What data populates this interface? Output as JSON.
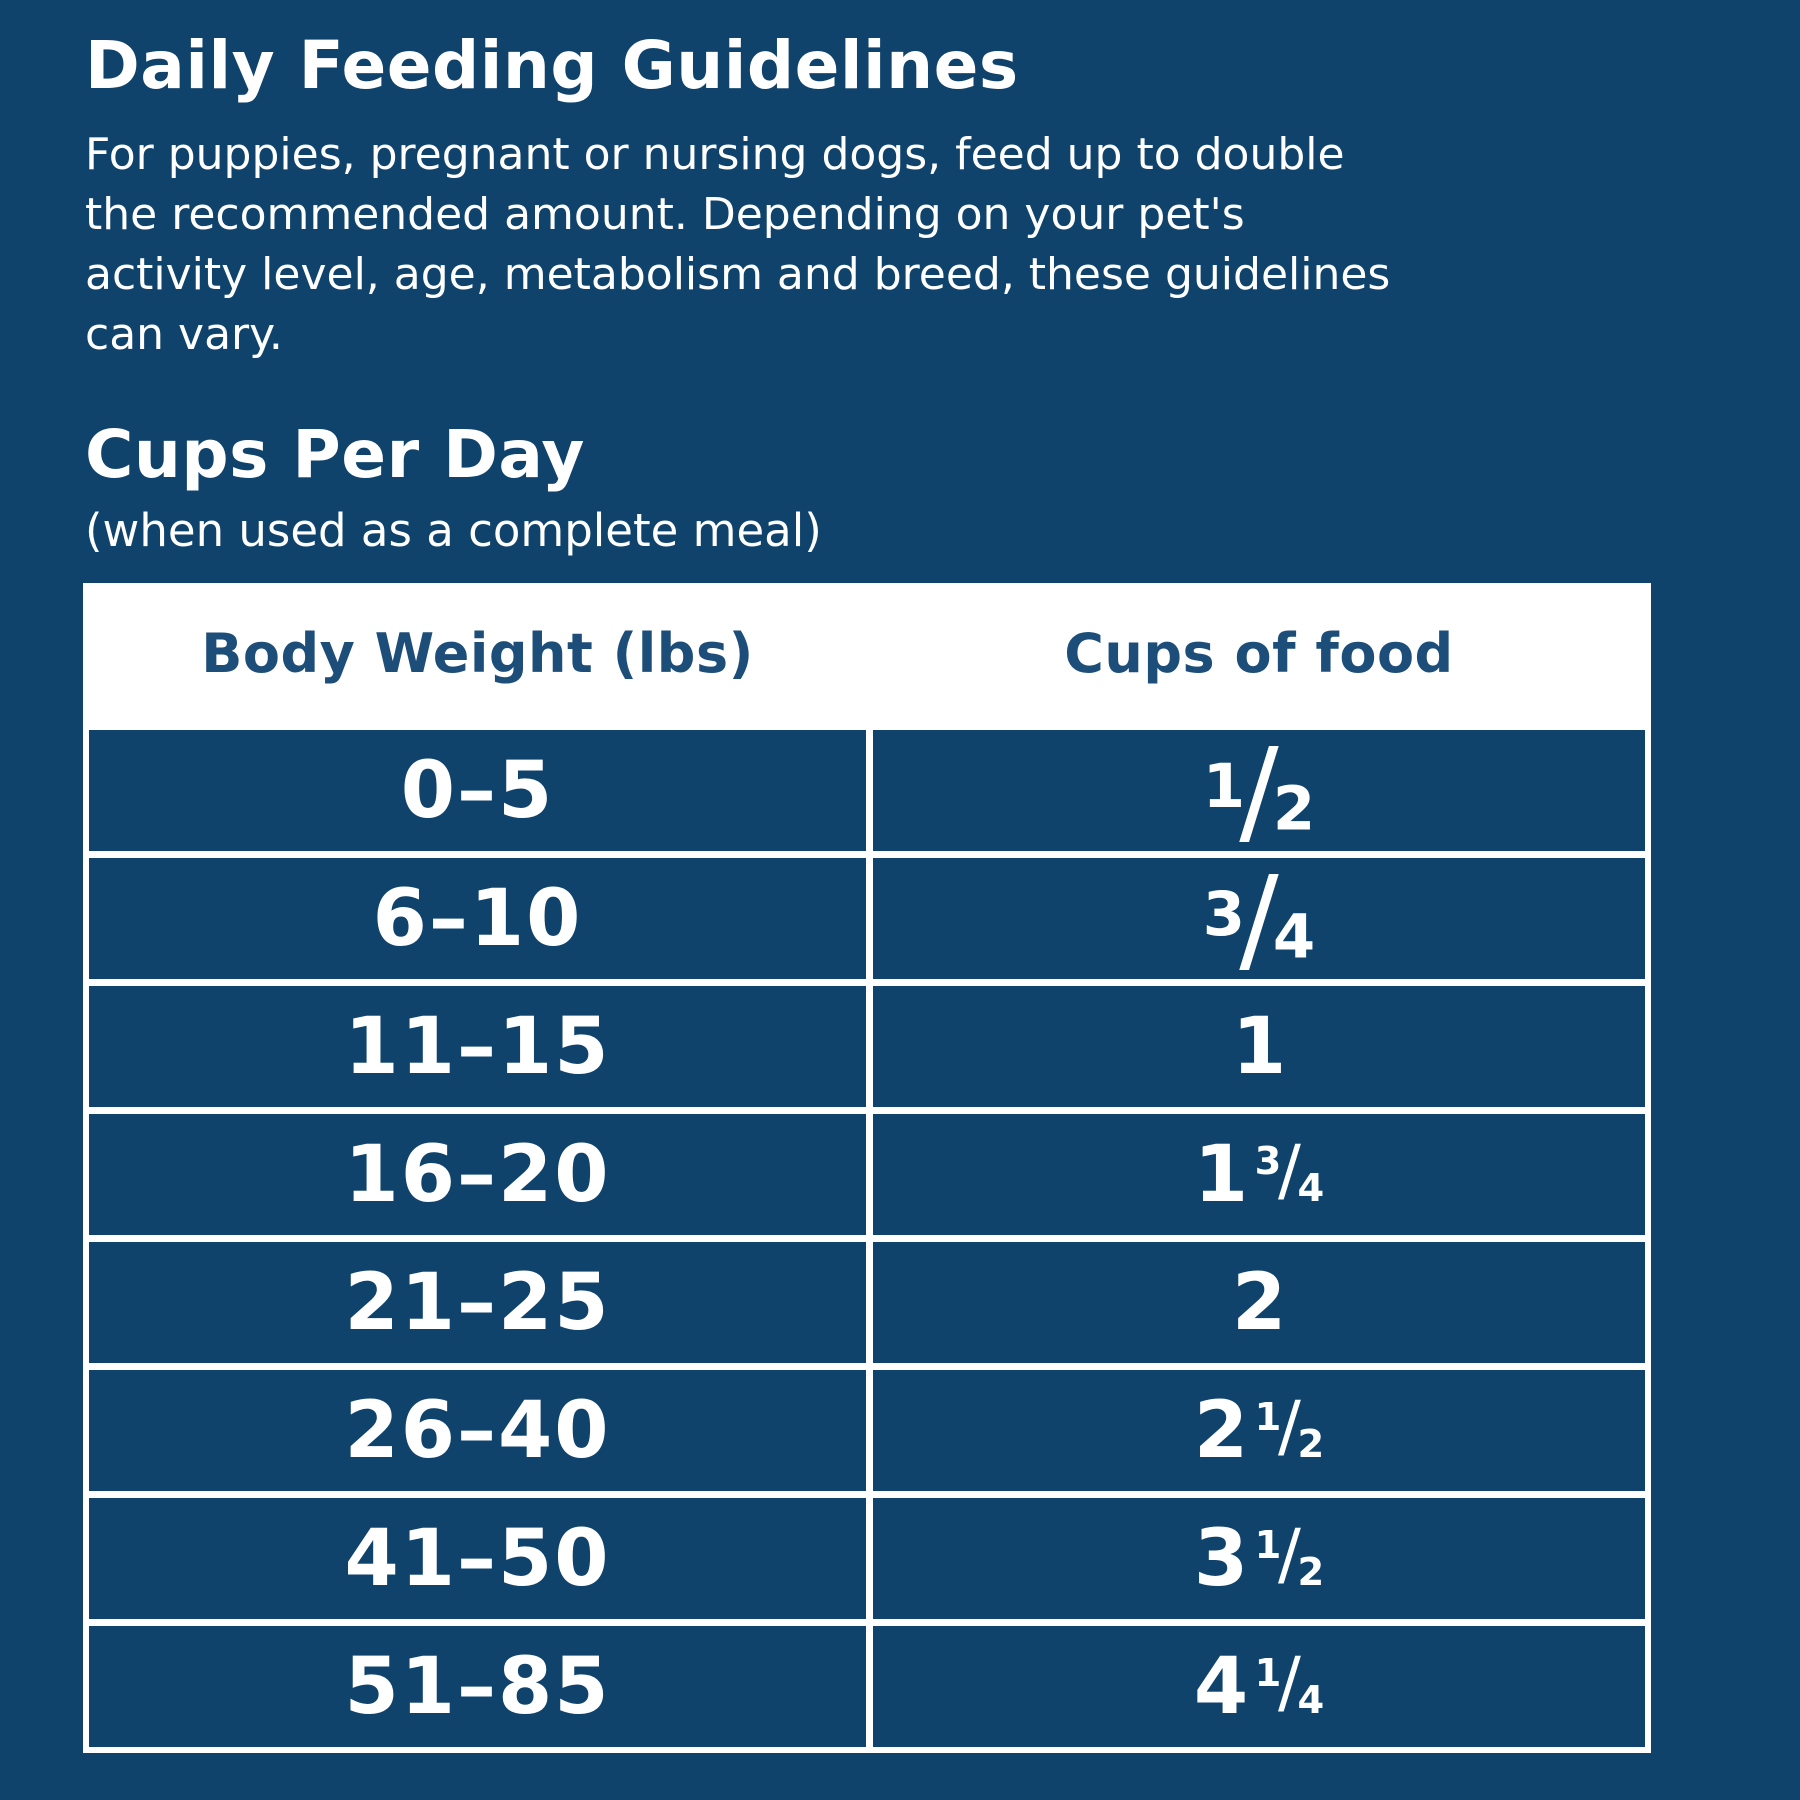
{
  "title": "Daily Feeding Guidelines",
  "intro": "For puppies, pregnant or nursing dogs, feed up to double\nthe recommended amount. Depending on your pet's\nactivity level, age, metabolism and breed, these guidelines\ncan vary.",
  "section": {
    "title": "Cups Per Day",
    "subtitle": "(when used as a complete meal)"
  },
  "table": {
    "headers": [
      "Body Weight (lbs)",
      "Cups of food"
    ],
    "rows": [
      {
        "weight": "0–5",
        "cups": {
          "whole": "",
          "num": "1",
          "slash": "/",
          "den": "2"
        }
      },
      {
        "weight": "6–10",
        "cups": {
          "whole": "",
          "num": "3",
          "slash": "/",
          "den": "4"
        }
      },
      {
        "weight": "11–15",
        "cups": {
          "whole": "1",
          "num": "",
          "slash": "",
          "den": ""
        }
      },
      {
        "weight": "16–20",
        "cups": {
          "whole": "1",
          "num": "3",
          "slash": "/",
          "den": "4"
        }
      },
      {
        "weight": "21–25",
        "cups": {
          "whole": "2",
          "num": "",
          "slash": "",
          "den": ""
        }
      },
      {
        "weight": "26–40",
        "cups": {
          "whole": "2",
          "num": "1",
          "slash": "/",
          "den": "2"
        }
      },
      {
        "weight": "41–50",
        "cups": {
          "whole": "3",
          "num": "1",
          "slash": "/",
          "den": "2"
        }
      },
      {
        "weight": "51–85",
        "cups": {
          "whole": "4",
          "num": "1",
          "slash": "/",
          "den": "4"
        }
      }
    ]
  },
  "colors": {
    "background": "#0F436C",
    "table_background": "#FFFFFF",
    "header_text": "#1D4E79",
    "body_text": "#FFFFFF"
  }
}
